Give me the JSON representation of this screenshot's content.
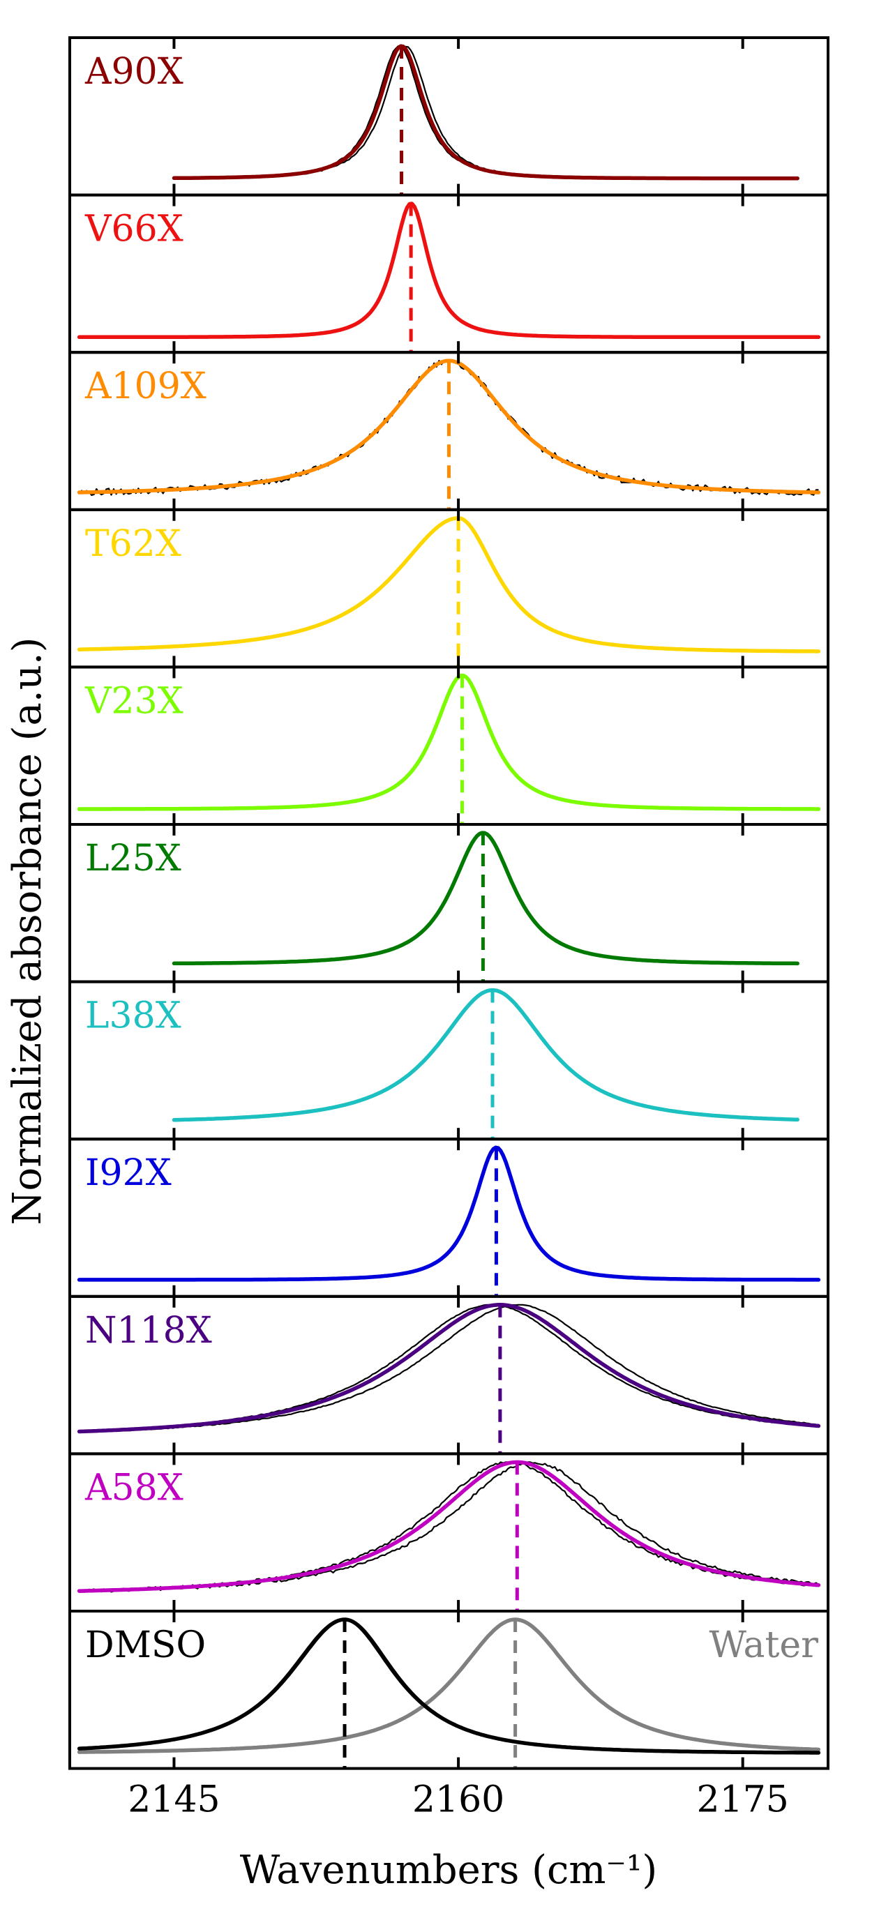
{
  "chart_data": {
    "type": "line",
    "layout": "stacked-panels",
    "xlabel": "Wavenumbers (cm⁻¹)",
    "ylabel": "Normalized absorbance (a.u.)",
    "xlim": [
      2139.5,
      2179.5
    ],
    "xticks": [
      2145,
      2160,
      2175
    ],
    "xtick_labels": [
      "2145",
      "2160",
      "2175"
    ],
    "ylim": [
      0,
      1
    ],
    "grid": false,
    "panels": [
      {
        "label": "A90X",
        "color": "#8b0000",
        "peak": 2157.0,
        "width_left": 1.5,
        "width_right": 1.5,
        "x_start": 2145,
        "x_end": 2178,
        "baseline": 0.03,
        "noise": 0.01,
        "n_traces": 2,
        "trace_offset": 0.25
      },
      {
        "label": "V66X",
        "color": "#ee1111",
        "peak": 2157.5,
        "width_left": 1.2,
        "width_right": 1.2,
        "x_start": 2140,
        "x_end": 2179,
        "baseline": 0.02,
        "noise": 0.01,
        "n_traces": 1,
        "trace_offset": 0.0
      },
      {
        "label": "A109X",
        "color": "#ff8c00",
        "peak": 2159.5,
        "width_left": 4.0,
        "width_right": 4.0,
        "x_start": 2140,
        "x_end": 2179,
        "baseline": 0.02,
        "noise": 0.05,
        "n_traces": 1,
        "trace_offset": 0.0
      },
      {
        "label": "T62X",
        "color": "#ffd700",
        "peak": 2160.0,
        "width_left": 4.3,
        "width_right": 2.6,
        "x_start": 2140,
        "x_end": 2179,
        "baseline": 0.02,
        "noise": 0.008,
        "n_traces": 1,
        "trace_offset": 0.0
      },
      {
        "label": "V23X",
        "color": "#7cfc00",
        "peak": 2160.2,
        "width_left": 1.9,
        "width_right": 1.9,
        "x_start": 2140,
        "x_end": 2179,
        "baseline": 0.02,
        "noise": 0.006,
        "n_traces": 1,
        "trace_offset": 0.0
      },
      {
        "label": "L25X",
        "color": "#007a00",
        "peak": 2161.3,
        "width_left": 2.1,
        "width_right": 2.1,
        "x_start": 2145,
        "x_end": 2178,
        "baseline": 0.04,
        "noise": 0.01,
        "n_traces": 1,
        "trace_offset": 0.0
      },
      {
        "label": "L38X",
        "color": "#1cc0c0",
        "peak": 2161.8,
        "width_left": 3.7,
        "width_right": 3.7,
        "x_start": 2145,
        "x_end": 2178,
        "baseline": 0.03,
        "noise": 0.004,
        "n_traces": 1,
        "trace_offset": 0.0
      },
      {
        "label": "I92X",
        "color": "#0000dd",
        "peak": 2162.0,
        "width_left": 1.5,
        "width_right": 1.5,
        "x_start": 2140,
        "x_end": 2179,
        "baseline": 0.03,
        "noise": 0.006,
        "n_traces": 1,
        "trace_offset": 0.0
      },
      {
        "label": "N118X",
        "color": "#4b0082",
        "peak": 2162.2,
        "width_left": 6.5,
        "width_right": 6.5,
        "x_start": 2140,
        "x_end": 2179,
        "baseline": 0.03,
        "noise": 0.006,
        "n_traces": 2,
        "trace_offset": 0.9
      },
      {
        "label": "A58X",
        "color": "#c000c0",
        "peak": 2163.1,
        "width_left": 5.7,
        "width_right": 5.7,
        "x_start": 2140,
        "x_end": 2179,
        "baseline": 0.03,
        "noise": 0.02,
        "n_traces": 2,
        "trace_offset": 0.8
      },
      {
        "label": "DMSO",
        "color": "#000000",
        "peak": 2154.0,
        "width_left": 3.8,
        "width_right": 3.5,
        "x_start": 2140,
        "x_end": 2179,
        "baseline": 0.02,
        "noise": 0.0,
        "n_traces": 1,
        "trace_offset": 0.2,
        "second_curve": {
          "label": "Water",
          "color": "#808080",
          "peak": 2163.0,
          "width_left": 4.0,
          "width_right": 4.0,
          "x_start": 2140,
          "x_end": 2179,
          "baseline": 0.02
        }
      }
    ]
  }
}
